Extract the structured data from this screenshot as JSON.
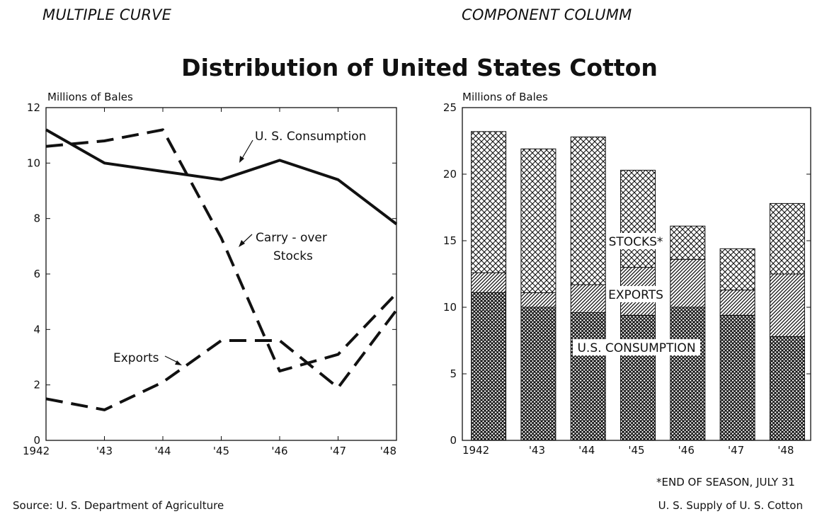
{
  "headings": {
    "left_type": "MULTIPLE CURVE",
    "right_type": "COMPONENT COLUMM",
    "title": "Distribution of United States Cotton"
  },
  "footer": {
    "source": "Source: U. S. Department of Agriculture",
    "season_note": "*END OF SEASON, JULY 31",
    "right_caption": "U. S. Supply of U. S. Cotton"
  },
  "chart_data": [
    {
      "type": "line",
      "ylabel": "Millions of Bales",
      "ylim": [
        0,
        12
      ],
      "yticks": [
        0,
        2,
        4,
        6,
        8,
        10,
        12
      ],
      "x": [
        "1942",
        "'43",
        "'44",
        "'45",
        "'46",
        "'47",
        "'48"
      ],
      "grid": false,
      "series": [
        {
          "name": "U. S. Consumption",
          "label": "U. S. Consumption",
          "style": "solid",
          "values": [
            11.2,
            10.0,
            9.7,
            9.4,
            10.1,
            9.4,
            7.8
          ]
        },
        {
          "name": "Carry - over Stocks",
          "label": [
            "Carry - over",
            "Stocks"
          ],
          "style": "dashed",
          "values": [
            10.6,
            10.8,
            11.2,
            7.3,
            2.5,
            3.1,
            5.3
          ]
        },
        {
          "name": "Exports",
          "label": "Exports",
          "style": "dashed",
          "values": [
            1.5,
            1.1,
            2.1,
            3.6,
            3.6,
            1.9,
            4.7
          ]
        }
      ]
    },
    {
      "type": "bar",
      "stacked": true,
      "ylabel": "Millions of Bales",
      "ylim": [
        0,
        25
      ],
      "yticks": [
        0,
        5,
        10,
        15,
        20,
        25
      ],
      "categories": [
        "1942",
        "'43",
        "'44",
        "'45",
        "'46",
        "'47",
        "'48"
      ],
      "grid": false,
      "series": [
        {
          "name": "U.S. CONSUMPTION",
          "pattern": "dense-crosshatch",
          "values": [
            11.1,
            10.0,
            9.6,
            9.4,
            10.0,
            9.4,
            7.8
          ]
        },
        {
          "name": "EXPORTS",
          "pattern": "diagonal",
          "values": [
            1.5,
            1.1,
            2.1,
            3.6,
            3.6,
            1.9,
            4.7
          ]
        },
        {
          "name": "STOCKS*",
          "pattern": "crosshatch",
          "values": [
            10.6,
            10.8,
            11.1,
            7.3,
            2.5,
            3.1,
            5.3
          ]
        }
      ]
    }
  ]
}
